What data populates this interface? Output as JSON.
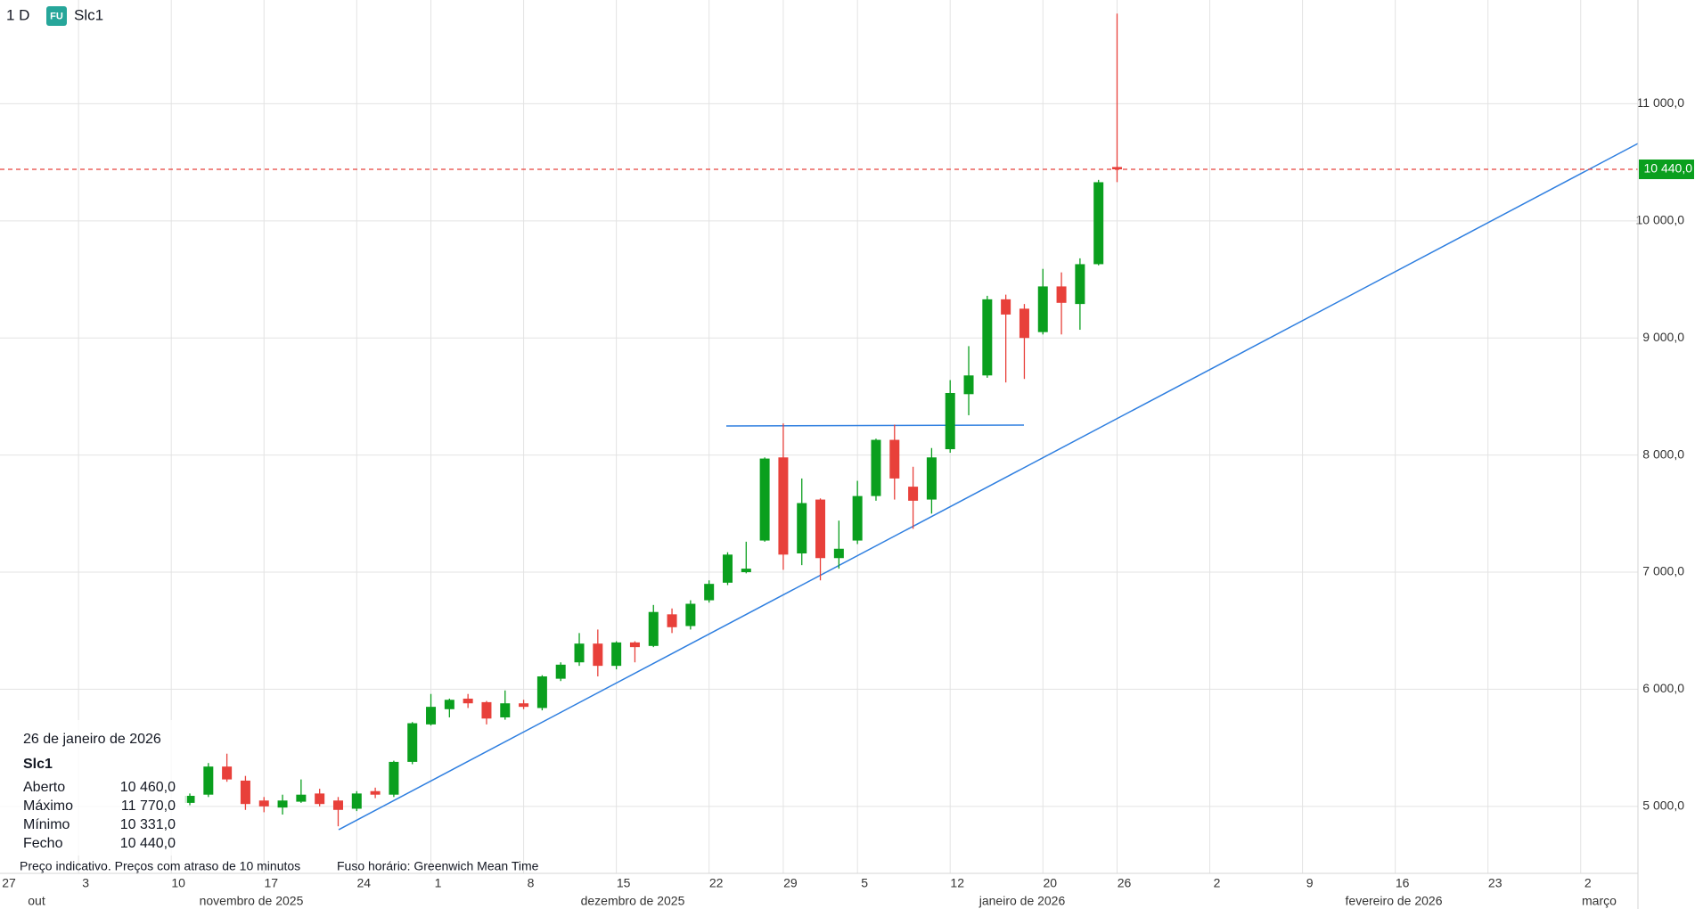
{
  "chart_data": {
    "type": "candlestick",
    "interval": "1 D",
    "badge": "FU",
    "symbol": "Slc1",
    "x": [
      "2025-11-11",
      "2025-11-12",
      "2025-11-13",
      "2025-11-14",
      "2025-11-17",
      "2025-11-18",
      "2025-11-19",
      "2025-11-20",
      "2025-11-21",
      "2025-11-24",
      "2025-11-25",
      "2025-11-26",
      "2025-11-28",
      "2025-12-01",
      "2025-12-02",
      "2025-12-03",
      "2025-12-04",
      "2025-12-05",
      "2025-12-08",
      "2025-12-09",
      "2025-12-10",
      "2025-12-11",
      "2025-12-12",
      "2025-12-15",
      "2025-12-16",
      "2025-12-17",
      "2025-12-18",
      "2025-12-19",
      "2025-12-22",
      "2025-12-23",
      "2025-12-24",
      "2025-12-26",
      "2025-12-29",
      "2025-12-30",
      "2025-12-31",
      "2026-01-02",
      "2026-01-05",
      "2026-01-06",
      "2026-01-07",
      "2026-01-08",
      "2026-01-09",
      "2026-01-12",
      "2026-01-13",
      "2026-01-14",
      "2026-01-15",
      "2026-01-16",
      "2026-01-20",
      "2026-01-21",
      "2026-01-22",
      "2026-01-23",
      "2026-01-26"
    ],
    "open": [
      5030,
      5100,
      5340,
      5220,
      5050,
      4990,
      5040,
      5110,
      5050,
      4980,
      5130,
      5100,
      5380,
      5700,
      5830,
      5920,
      5890,
      5760,
      5880,
      5840,
      6090,
      6230,
      6390,
      6200,
      6400,
      6370,
      6640,
      6540,
      6760,
      6910,
      7000,
      7270,
      7980,
      7160,
      7620,
      7120,
      7270,
      7650,
      8130,
      7730,
      7620,
      8050,
      8520,
      8680,
      9330,
      9250,
      9050,
      9440,
      9290,
      9630,
      10460
    ],
    "high": [
      5110,
      5370,
      5450,
      5260,
      5080,
      5100,
      5230,
      5150,
      5080,
      5130,
      5160,
      5390,
      5720,
      5960,
      5920,
      5960,
      5900,
      5990,
      5910,
      6120,
      6230,
      6480,
      6510,
      6410,
      6410,
      6720,
      6690,
      6760,
      6930,
      7170,
      7260,
      7980,
      8270,
      7800,
      7630,
      7440,
      7780,
      8140,
      8260,
      7900,
      8060,
      8640,
      8930,
      9360,
      9370,
      9290,
      9590,
      9560,
      9680,
      10350,
      11770
    ],
    "low": [
      5010,
      5080,
      5210,
      4970,
      4950,
      4930,
      5030,
      5000,
      4830,
      4960,
      5070,
      5080,
      5360,
      5690,
      5760,
      5840,
      5700,
      5740,
      5830,
      5820,
      6070,
      6200,
      6110,
      6170,
      6230,
      6360,
      6480,
      6510,
      6740,
      6890,
      6990,
      7260,
      7020,
      7060,
      6930,
      7030,
      7240,
      7610,
      7620,
      7370,
      7500,
      8020,
      8340,
      8660,
      8620,
      8650,
      9030,
      9030,
      9070,
      9620,
      10331
    ],
    "close": [
      5090,
      5340,
      5230,
      5020,
      5000,
      5050,
      5100,
      5020,
      4970,
      5110,
      5100,
      5380,
      5710,
      5850,
      5910,
      5880,
      5750,
      5880,
      5850,
      6110,
      6210,
      6390,
      6200,
      6400,
      6360,
      6660,
      6530,
      6730,
      6900,
      7150,
      7030,
      7970,
      7150,
      7590,
      7120,
      7200,
      7650,
      8130,
      7800,
      7610,
      7980,
      8530,
      8680,
      9330,
      9200,
      9000,
      9440,
      9300,
      9630,
      10330,
      10440
    ],
    "up_color": "#0a9f1e",
    "down_color": "#e8403a",
    "ylim": [
      4428,
      11886
    ],
    "yticks": [
      {
        "value": 5000,
        "label": "5 000,0"
      },
      {
        "value": 6000,
        "label": "6 000,0"
      },
      {
        "value": 7000,
        "label": "7 000,0"
      },
      {
        "value": 8000,
        "label": "8 000,0"
      },
      {
        "value": 9000,
        "label": "9 000,0"
      },
      {
        "value": 10000,
        "label": "10 000,0"
      },
      {
        "value": 11000,
        "label": "11 000,0"
      }
    ],
    "xticks": [
      {
        "value": "2025-10-27",
        "label": "27"
      },
      {
        "value": "2025-11-03",
        "label": "3"
      },
      {
        "value": "2025-11-10",
        "label": "10"
      },
      {
        "value": "2025-11-17",
        "label": "17"
      },
      {
        "value": "2025-11-24",
        "label": "24"
      },
      {
        "value": "2025-12-01",
        "label": "1"
      },
      {
        "value": "2025-12-08",
        "label": "8"
      },
      {
        "value": "2025-12-15",
        "label": "15"
      },
      {
        "value": "2025-12-22",
        "label": "22"
      },
      {
        "value": "2025-12-29",
        "label": "29"
      },
      {
        "value": "2026-01-05",
        "label": "5"
      },
      {
        "value": "2026-01-12",
        "label": "12"
      },
      {
        "value": "2026-01-20",
        "label": "20"
      },
      {
        "value": "2026-01-26",
        "label": "26"
      },
      {
        "value": "2026-02-02",
        "label": "2"
      },
      {
        "value": "2026-02-09",
        "label": "9"
      },
      {
        "value": "2026-02-16",
        "label": "16"
      },
      {
        "value": "2026-02-23",
        "label": "23"
      },
      {
        "value": "2026-03-02",
        "label": "2"
      }
    ],
    "months": [
      "out",
      "novembro de 2025",
      "dezembro de 2025",
      "janeiro de 2026",
      "fevereiro de 2026",
      "março"
    ],
    "last_price": {
      "value": 10440,
      "label": "10 440,0"
    },
    "grid": true
  },
  "tooltip": {
    "date": "26 de janeiro de 2026",
    "symbol": "Slc1",
    "rows": [
      {
        "label": "Aberto",
        "value": "10 460,0"
      },
      {
        "label": "Máximo",
        "value": "11 770,0"
      },
      {
        "label": "Mínimo",
        "value": "10 331,0"
      },
      {
        "label": "Fecho",
        "value": "10 440,0"
      }
    ]
  },
  "footer": {
    "note": "Preço indicativo. Preços com atraso de 10 minutos",
    "timezone": "Fuso horário: Greenwich Mean Time"
  }
}
